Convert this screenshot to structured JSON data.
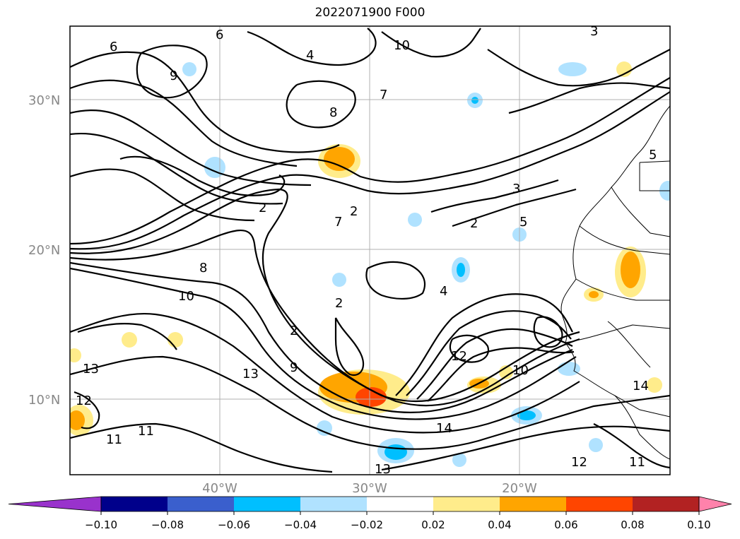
{
  "map": {
    "title": "2022071900 F000",
    "lat_labels": [
      "30°N",
      "20°N",
      "10°N"
    ],
    "lon_labels": [
      "40°W",
      "30°W",
      "20°W"
    ],
    "contour_labels": [
      "6",
      "8",
      "10",
      "12",
      "13",
      "14",
      "11",
      "9",
      "7",
      "4",
      "3",
      "2",
      "5",
      "13",
      "12",
      "11",
      "10",
      "14",
      "13",
      "12",
      "11",
      "10",
      "9",
      "8",
      "7",
      "6",
      "4",
      "3",
      "2",
      "2",
      "2",
      "2",
      "5"
    ]
  },
  "colorbar": {
    "ticks": [
      "−0.10",
      "−0.08",
      "−0.06",
      "−0.04",
      "−0.02",
      "0.02",
      "0.04",
      "0.06",
      "0.08",
      "0.10"
    ],
    "colors": [
      "#9932cc",
      "#00008b",
      "#3a5fcd",
      "#00bfff",
      "#b0e2ff",
      "#ffffff",
      "#ffec8b",
      "#ffa500",
      "#ff4500",
      "#b22222",
      "#ff82ab"
    ],
    "extend": "both"
  }
}
